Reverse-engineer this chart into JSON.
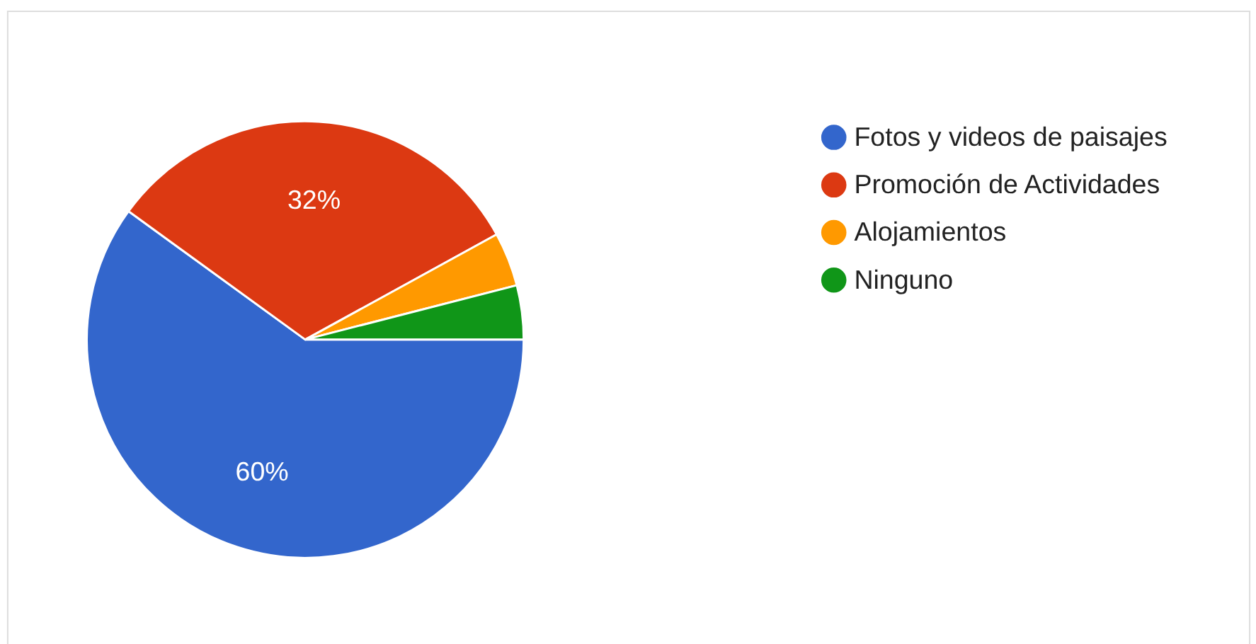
{
  "chart_data": {
    "type": "pie",
    "categories": [
      "Fotos y videos de paisajes",
      "Promoción de Actividades",
      "Alojamientos",
      "Ninguno"
    ],
    "values": [
      60,
      32,
      4,
      4
    ],
    "colors": [
      "#3366cc",
      "#dc3912",
      "#ff9900",
      "#109618"
    ],
    "value_labels": [
      "60%",
      "32%",
      null,
      null
    ],
    "legend": "top right"
  }
}
